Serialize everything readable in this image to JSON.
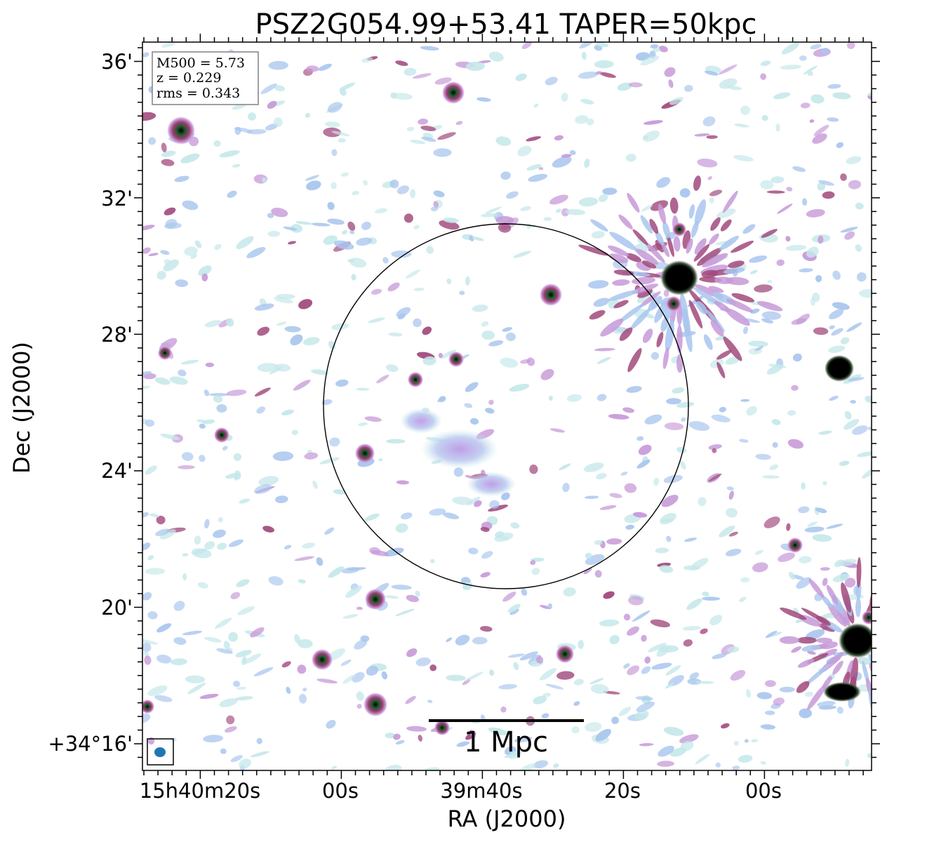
{
  "title": "PSZ2G054.99+53.41 TAPER=50kpc",
  "info_box": {
    "mass_line": "M500 = 5.73",
    "redshift_line": "z = 0.229",
    "rms_line": "rms = 0.343"
  },
  "axes": {
    "x_label": "RA (J2000)",
    "y_label": "Dec (J2000)",
    "x_ticks": [
      "15h40m20s",
      "00s",
      "39m40s",
      "20s",
      "00s"
    ],
    "y_ticks": [
      "36'",
      "32'",
      "28'",
      "24'",
      "20'",
      "+34°16'"
    ]
  },
  "scale_bar": {
    "label": "1 Mpc"
  },
  "colormap": [
    "#c6e8ea",
    "#a9c6ee",
    "#c79ad8",
    "#a14a7c",
    "#2e5a33",
    "#000000"
  ],
  "beam_color": "#1f77b4"
}
